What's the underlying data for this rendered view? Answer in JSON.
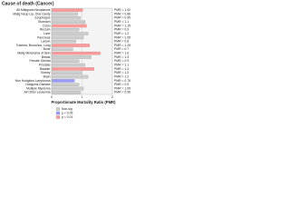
{
  "chart_data": {
    "type": "barh",
    "title": "Cause of death (Cancer)",
    "x_label": "Proportionate Mortality Ratio (PMR)",
    "categories": [
      "All Malignant Neoplasms",
      "Malig Neop Lip, Oral Cavity",
      "Esophagus",
      "Stomach",
      "Colon",
      "Rectum",
      "Liver",
      "Pancreas",
      "Larynx",
      "Trachea, Bronchus, Lung",
      "Bone",
      "Malig Melanoma of Skin",
      "Breast",
      "Female Genital",
      "Prostate",
      "Bladder",
      "Kidney",
      "Brain",
      "Non Hodgkins Lymphoma",
      "Hodgkins Disease",
      "Multiple Myeloma",
      "All Other Leukemia"
    ],
    "values": [
      1.02,
      0.86,
      0.95,
      1.1,
      1.15,
      0.9,
      1.2,
      1.05,
      0.8,
      1.25,
      0.7,
      1.6,
      1.3,
      0.9,
      1.1,
      1.4,
      1.0,
      1.2,
      0.75,
      0.9,
      1.05,
      0.95
    ],
    "value_labels": [
      "PMR = 1.02",
      "PMR = 0.86",
      "PMR = 0.95",
      "PMR = 1.1",
      "PMR = 1.15",
      "PMR = 0.9",
      "PMR = 1.2",
      "PMR = 1.05",
      "PMR = 0.8",
      "PMR = 1.25",
      "PMR = 0.7",
      "PMR = 1.6",
      "PMR = 1.3",
      "PMR = 0.9",
      "PMR = 1.1",
      "PMR = 1.4",
      "PMR = 1.0",
      "PMR = 1.2",
      "PMR = 0.75",
      "PMR = 0.9",
      "PMR = 1.05",
      "PMR = 0.95"
    ],
    "colors": [
      "#ff9999",
      "#cccccc",
      "#cccccc",
      "#cccccc",
      "#ff9999",
      "#cccccc",
      "#cccccc",
      "#cccccc",
      "#cccccc",
      "#ff9999",
      "#cccccc",
      "#ff9999",
      "#cccccc",
      "#cccccc",
      "#cccccc",
      "#ff9999",
      "#cccccc",
      "#cccccc",
      "#9999ff",
      "#cccccc",
      "#cccccc",
      "#cccccc"
    ],
    "legend": [
      {
        "name": "Non-sig",
        "color": "#cccccc"
      },
      {
        "name": "p < 0.05",
        "color": "#9999ff"
      },
      {
        "name": "p < 0.01",
        "color": "#ff9999"
      }
    ],
    "xlim": [
      0,
      2
    ],
    "xticks": [
      0,
      1,
      2
    ]
  }
}
